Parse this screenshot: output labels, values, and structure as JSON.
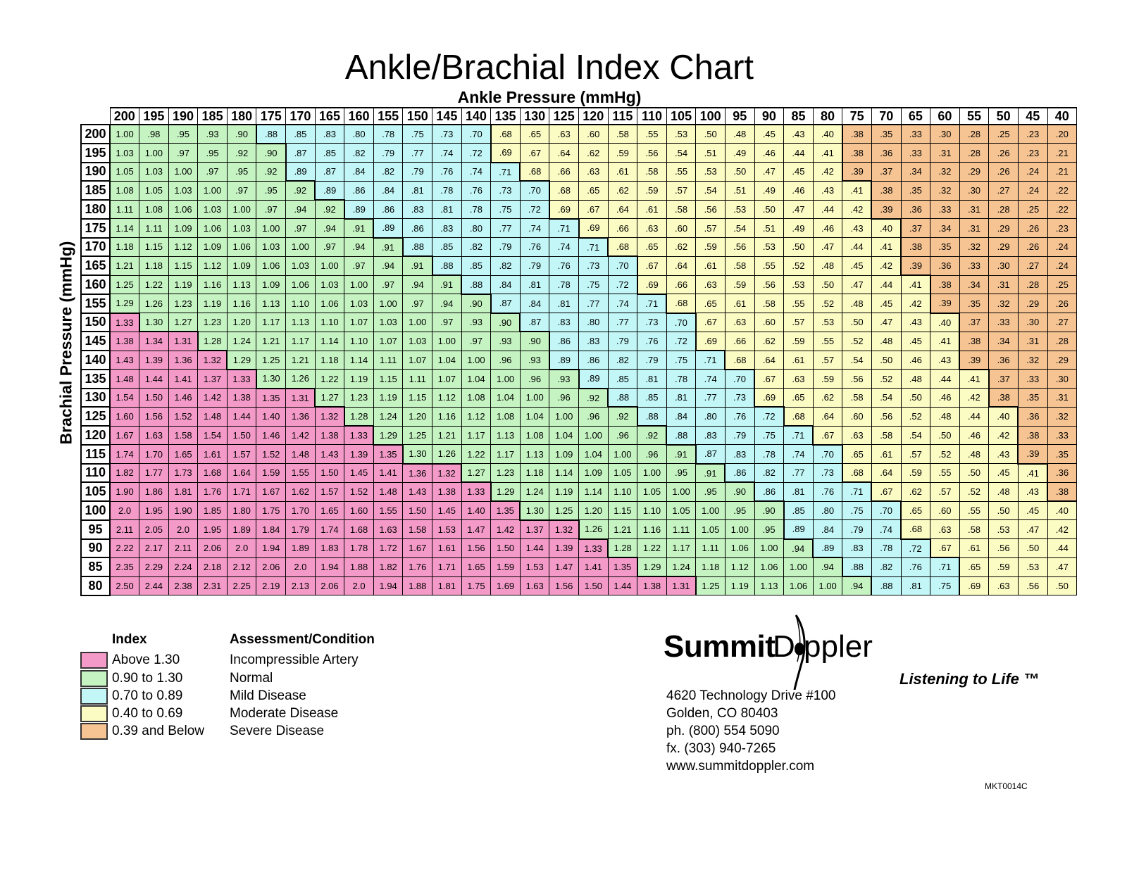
{
  "chart_data": {
    "type": "table",
    "title": "Ankle/Brachial Index Chart",
    "xlabel": "Ankle Pressure (mmHg)",
    "ylabel": "Brachial Pressure (mmHg)",
    "columns": [
      "200",
      "195",
      "190",
      "185",
      "180",
      "175",
      "170",
      "165",
      "160",
      "155",
      "150",
      "145",
      "140",
      "135",
      "130",
      "125",
      "120",
      "115",
      "110",
      "105",
      "100",
      "95",
      "90",
      "85",
      "80",
      "75",
      "70",
      "65",
      "60",
      "55",
      "50",
      "45",
      "40"
    ],
    "rows": [
      {
        "label": "200",
        "values": [
          "1.00",
          ".98",
          ".95",
          ".93",
          ".90",
          ".88",
          ".85",
          ".83",
          ".80",
          ".78",
          ".75",
          ".73",
          ".70",
          ".68",
          ".65",
          ".63",
          ".60",
          ".58",
          ".55",
          ".53",
          ".50",
          ".48",
          ".45",
          ".43",
          ".40",
          ".38",
          ".35",
          ".33",
          ".30",
          ".28",
          ".25",
          ".23",
          ".20"
        ]
      },
      {
        "label": "195",
        "values": [
          "1.03",
          "1.00",
          ".97",
          ".95",
          ".92",
          ".90",
          ".87",
          ".85",
          ".82",
          ".79",
          ".77",
          ".74",
          ".72",
          ".69",
          ".67",
          ".64",
          ".62",
          ".59",
          ".56",
          ".54",
          ".51",
          ".49",
          ".46",
          ".44",
          ".41",
          ".38",
          ".36",
          ".33",
          ".31",
          ".28",
          ".26",
          ".23",
          ".21"
        ]
      },
      {
        "label": "190",
        "values": [
          "1.05",
          "1.03",
          "1.00",
          ".97",
          ".95",
          ".92",
          ".89",
          ".87",
          ".84",
          ".82",
          ".79",
          ".76",
          ".74",
          ".71",
          ".68",
          ".66",
          ".63",
          ".61",
          ".58",
          ".55",
          ".53",
          ".50",
          ".47",
          ".45",
          ".42",
          ".39",
          ".37",
          ".34",
          ".32",
          ".29",
          ".26",
          ".24",
          ".21"
        ]
      },
      {
        "label": "185",
        "values": [
          "1.08",
          "1.05",
          "1.03",
          "1.00",
          ".97",
          ".95",
          ".92",
          ".89",
          ".86",
          ".84",
          ".81",
          ".78",
          ".76",
          ".73",
          ".70",
          ".68",
          ".65",
          ".62",
          ".59",
          ".57",
          ".54",
          ".51",
          ".49",
          ".46",
          ".43",
          ".41",
          ".38",
          ".35",
          ".32",
          ".30",
          ".27",
          ".24",
          ".22"
        ]
      },
      {
        "label": "180",
        "values": [
          "1.11",
          "1.08",
          "1.06",
          "1.03",
          "1.00",
          ".97",
          ".94",
          ".92",
          ".89",
          ".86",
          ".83",
          ".81",
          ".78",
          ".75",
          ".72",
          ".69",
          ".67",
          ".64",
          ".61",
          ".58",
          ".56",
          ".53",
          ".50",
          ".47",
          ".44",
          ".42",
          ".39",
          ".36",
          ".33",
          ".31",
          ".28",
          ".25",
          ".22"
        ]
      },
      {
        "label": "175",
        "values": [
          "1.14",
          "1.11",
          "1.09",
          "1.06",
          "1.03",
          "1.00",
          ".97",
          ".94",
          ".91",
          ".89",
          ".86",
          ".83",
          ".80",
          ".77",
          ".74",
          ".71",
          ".69",
          ".66",
          ".63",
          ".60",
          ".57",
          ".54",
          ".51",
          ".49",
          ".46",
          ".43",
          ".40",
          ".37",
          ".34",
          ".31",
          ".29",
          ".26",
          ".23"
        ]
      },
      {
        "label": "170",
        "values": [
          "1.18",
          "1.15",
          "1.12",
          "1.09",
          "1.06",
          "1.03",
          "1.00",
          ".97",
          ".94",
          ".91",
          ".88",
          ".85",
          ".82",
          ".79",
          ".76",
          ".74",
          ".71",
          ".68",
          ".65",
          ".62",
          ".59",
          ".56",
          ".53",
          ".50",
          ".47",
          ".44",
          ".41",
          ".38",
          ".35",
          ".32",
          ".29",
          ".26",
          ".24"
        ]
      },
      {
        "label": "165",
        "values": [
          "1.21",
          "1.18",
          "1.15",
          "1.12",
          "1.09",
          "1.06",
          "1.03",
          "1.00",
          ".97",
          ".94",
          ".91",
          ".88",
          ".85",
          ".82",
          ".79",
          ".76",
          ".73",
          ".70",
          ".67",
          ".64",
          ".61",
          ".58",
          ".55",
          ".52",
          ".48",
          ".45",
          ".42",
          ".39",
          ".36",
          ".33",
          ".30",
          ".27",
          ".24"
        ]
      },
      {
        "label": "160",
        "values": [
          "1.25",
          "1.22",
          "1.19",
          "1.16",
          "1.13",
          "1.09",
          "1.06",
          "1.03",
          "1.00",
          ".97",
          ".94",
          ".91",
          ".88",
          ".84",
          ".81",
          ".78",
          ".75",
          ".72",
          ".69",
          ".66",
          ".63",
          ".59",
          ".56",
          ".53",
          ".50",
          ".47",
          ".44",
          ".41",
          ".38",
          ".34",
          ".31",
          ".28",
          ".25"
        ]
      },
      {
        "label": "155",
        "values": [
          "1.29",
          "1.26",
          "1.23",
          "1.19",
          "1.16",
          "1.13",
          "1.10",
          "1.06",
          "1.03",
          "1.00",
          ".97",
          ".94",
          ".90",
          ".87",
          ".84",
          ".81",
          ".77",
          ".74",
          ".71",
          ".68",
          ".65",
          ".61",
          ".58",
          ".55",
          ".52",
          ".48",
          ".45",
          ".42",
          ".39",
          ".35",
          ".32",
          ".29",
          ".26"
        ]
      },
      {
        "label": "150",
        "values": [
          "1.33",
          "1.30",
          "1.27",
          "1.23",
          "1.20",
          "1.17",
          "1.13",
          "1.10",
          "1.07",
          "1.03",
          "1.00",
          ".97",
          ".93",
          ".90",
          ".87",
          ".83",
          ".80",
          ".77",
          ".73",
          ".70",
          ".67",
          ".63",
          ".60",
          ".57",
          ".53",
          ".50",
          ".47",
          ".43",
          ".40",
          ".37",
          ".33",
          ".30",
          ".27"
        ]
      },
      {
        "label": "145",
        "values": [
          "1.38",
          "1.34",
          "1.31",
          "1.28",
          "1.24",
          "1.21",
          "1.17",
          "1.14",
          "1.10",
          "1.07",
          "1.03",
          "1.00",
          ".97",
          ".93",
          ".90",
          ".86",
          ".83",
          ".79",
          ".76",
          ".72",
          ".69",
          ".66",
          ".62",
          ".59",
          ".55",
          ".52",
          ".48",
          ".45",
          ".41",
          ".38",
          ".34",
          ".31",
          ".28"
        ]
      },
      {
        "label": "140",
        "values": [
          "1.43",
          "1.39",
          "1.36",
          "1.32",
          "1.29",
          "1.25",
          "1.21",
          "1.18",
          "1.14",
          "1.11",
          "1.07",
          "1.04",
          "1.00",
          ".96",
          ".93",
          ".89",
          ".86",
          ".82",
          ".79",
          ".75",
          ".71",
          ".68",
          ".64",
          ".61",
          ".57",
          ".54",
          ".50",
          ".46",
          ".43",
          ".39",
          ".36",
          ".32",
          ".29"
        ]
      },
      {
        "label": "135",
        "values": [
          "1.48",
          "1.44",
          "1.41",
          "1.37",
          "1.33",
          "1.30",
          "1.26",
          "1.22",
          "1.19",
          "1.15",
          "1.11",
          "1.07",
          "1.04",
          "1.00",
          ".96",
          ".93",
          ".89",
          ".85",
          ".81",
          ".78",
          ".74",
          ".70",
          ".67",
          ".63",
          ".59",
          ".56",
          ".52",
          ".48",
          ".44",
          ".41",
          ".37",
          ".33",
          ".30"
        ]
      },
      {
        "label": "130",
        "values": [
          "1.54",
          "1.50",
          "1.46",
          "1.42",
          "1.38",
          "1.35",
          "1.31",
          "1.27",
          "1.23",
          "1.19",
          "1.15",
          "1.12",
          "1.08",
          "1.04",
          "1.00",
          ".96",
          ".92",
          ".88",
          ".85",
          ".81",
          ".77",
          ".73",
          ".69",
          ".65",
          ".62",
          ".58",
          ".54",
          ".50",
          ".46",
          ".42",
          ".38",
          ".35",
          ".31"
        ]
      },
      {
        "label": "125",
        "values": [
          "1.60",
          "1.56",
          "1.52",
          "1.48",
          "1.44",
          "1.40",
          "1.36",
          "1.32",
          "1.28",
          "1.24",
          "1.20",
          "1.16",
          "1.12",
          "1.08",
          "1.04",
          "1.00",
          ".96",
          ".92",
          ".88",
          ".84",
          ".80",
          ".76",
          ".72",
          ".68",
          ".64",
          ".60",
          ".56",
          ".52",
          ".48",
          ".44",
          ".40",
          ".36",
          ".32"
        ]
      },
      {
        "label": "120",
        "values": [
          "1.67",
          "1.63",
          "1.58",
          "1.54",
          "1.50",
          "1.46",
          "1.42",
          "1.38",
          "1.33",
          "1.29",
          "1.25",
          "1.21",
          "1.17",
          "1.13",
          "1.08",
          "1.04",
          "1.00",
          ".96",
          ".92",
          ".88",
          ".83",
          ".79",
          ".75",
          ".71",
          ".67",
          ".63",
          ".58",
          ".54",
          ".50",
          ".46",
          ".42",
          ".38",
          ".33"
        ]
      },
      {
        "label": "115",
        "values": [
          "1.74",
          "1.70",
          "1.65",
          "1.61",
          "1.57",
          "1.52",
          "1.48",
          "1.43",
          "1.39",
          "1.35",
          "1.30",
          "1.26",
          "1.22",
          "1.17",
          "1.13",
          "1.09",
          "1.04",
          "1.00",
          ".96",
          ".91",
          ".87",
          ".83",
          ".78",
          ".74",
          ".70",
          ".65",
          ".61",
          ".57",
          ".52",
          ".48",
          ".43",
          ".39",
          ".35"
        ]
      },
      {
        "label": "110",
        "values": [
          "1.82",
          "1.77",
          "1.73",
          "1.68",
          "1.64",
          "1.59",
          "1.55",
          "1.50",
          "1.45",
          "1.41",
          "1.36",
          "1.32",
          "1.27",
          "1.23",
          "1.18",
          "1.14",
          "1.09",
          "1.05",
          "1.00",
          ".95",
          ".91",
          ".86",
          ".82",
          ".77",
          ".73",
          ".68",
          ".64",
          ".59",
          ".55",
          ".50",
          ".45",
          ".41",
          ".36"
        ]
      },
      {
        "label": "105",
        "values": [
          "1.90",
          "1.86",
          "1.81",
          "1.76",
          "1.71",
          "1.67",
          "1.62",
          "1.57",
          "1.52",
          "1.48",
          "1.43",
          "1.38",
          "1.33",
          "1.29",
          "1.24",
          "1.19",
          "1.14",
          "1.10",
          "1.05",
          "1.00",
          ".95",
          ".90",
          ".86",
          ".81",
          ".76",
          ".71",
          ".67",
          ".62",
          ".57",
          ".52",
          ".48",
          ".43",
          ".38"
        ]
      },
      {
        "label": "100",
        "values": [
          "2.0",
          "1.95",
          "1.90",
          "1.85",
          "1.80",
          "1.75",
          "1.70",
          "1.65",
          "1.60",
          "1.55",
          "1.50",
          "1.45",
          "1.40",
          "1.35",
          "1.30",
          "1.25",
          "1.20",
          "1.15",
          "1.10",
          "1.05",
          "1.00",
          ".95",
          ".90",
          ".85",
          ".80",
          ".75",
          ".70",
          ".65",
          ".60",
          ".55",
          ".50",
          ".45",
          ".40"
        ]
      },
      {
        "label": "95",
        "values": [
          "2.11",
          "2.05",
          "2.0",
          "1.95",
          "1.89",
          "1.84",
          "1.79",
          "1.74",
          "1.68",
          "1.63",
          "1.58",
          "1.53",
          "1.47",
          "1.42",
          "1.37",
          "1.32",
          "1.26",
          "1.21",
          "1.16",
          "1.11",
          "1.05",
          "1.00",
          ".95",
          ".89",
          ".84",
          ".79",
          ".74",
          ".68",
          ".63",
          ".58",
          ".53",
          ".47",
          ".42"
        ]
      },
      {
        "label": "90",
        "values": [
          "2.22",
          "2.17",
          "2.11",
          "2.06",
          "2.0",
          "1.94",
          "1.89",
          "1.83",
          "1.78",
          "1.72",
          "1.67",
          "1.61",
          "1.56",
          "1.50",
          "1.44",
          "1.39",
          "1.33",
          "1.28",
          "1.22",
          "1.17",
          "1.11",
          "1.06",
          "1.00",
          ".94",
          ".89",
          ".83",
          ".78",
          ".72",
          ".67",
          ".61",
          ".56",
          ".50",
          ".44"
        ]
      },
      {
        "label": "85",
        "values": [
          "2.35",
          "2.29",
          "2.24",
          "2.18",
          "2.12",
          "2.06",
          "2.0",
          "1.94",
          "1.88",
          "1.82",
          "1.76",
          "1.71",
          "1.65",
          "1.59",
          "1.53",
          "1.47",
          "1.41",
          "1.35",
          "1.29",
          "1.24",
          "1.18",
          "1.12",
          "1.06",
          "1.00",
          ".94",
          ".88",
          ".82",
          ".76",
          ".71",
          ".65",
          ".59",
          ".53",
          ".47"
        ]
      },
      {
        "label": "80",
        "values": [
          "2.50",
          "2.44",
          "2.38",
          "2.31",
          "2.25",
          "2.19",
          "2.13",
          "2.06",
          "2.0",
          "1.94",
          "1.88",
          "1.81",
          "1.75",
          "1.69",
          "1.63",
          "1.56",
          "1.50",
          "1.44",
          "1.38",
          "1.31",
          "1.25",
          "1.19",
          "1.13",
          "1.06",
          "1.00",
          ".94",
          ".88",
          ".81",
          ".75",
          ".69",
          ".63",
          ".56",
          ".50"
        ]
      }
    ],
    "color_scale": [
      {
        "min": 1.31,
        "color": "#f49ac8"
      },
      {
        "min": 0.9,
        "color": "#c5f4c2"
      },
      {
        "min": 0.7,
        "color": "#c2f6f7"
      },
      {
        "min": 0.4,
        "color": "#fbfbc4"
      },
      {
        "min": 0.0,
        "color": "#f6c493"
      }
    ]
  },
  "legend": {
    "index_header": "Index",
    "condition_header": "Assessment/Condition",
    "items": [
      {
        "range": "Above 1.30",
        "condition": "Incompressible Artery",
        "color": "#f49ac8"
      },
      {
        "range": "0.90 to 1.30",
        "condition": "Normal",
        "color": "#c5f4c2"
      },
      {
        "range": "0.70 to 0.89",
        "condition": "Mild Disease",
        "color": "#c2f6f7"
      },
      {
        "range": "0.40 to 0.69",
        "condition": "Moderate Disease",
        "color": "#fbfbc4"
      },
      {
        "range": "0.39 and Below",
        "condition": "Severe Disease",
        "color": "#f6c493"
      }
    ]
  },
  "company": {
    "logo_text": "SummitDoppler",
    "logo_part1": "Summit",
    "logo_part2": "D  ppler",
    "tagline": "Listening to Life ™",
    "address_line1": "4620 Technology Drive #100",
    "address_line2": "Golden, CO  80403",
    "phone": "ph. (800) 554 5090",
    "fax": "fx.  (303) 940-7265",
    "website": "www.summitdoppler.com",
    "code": "MKT0014C"
  }
}
